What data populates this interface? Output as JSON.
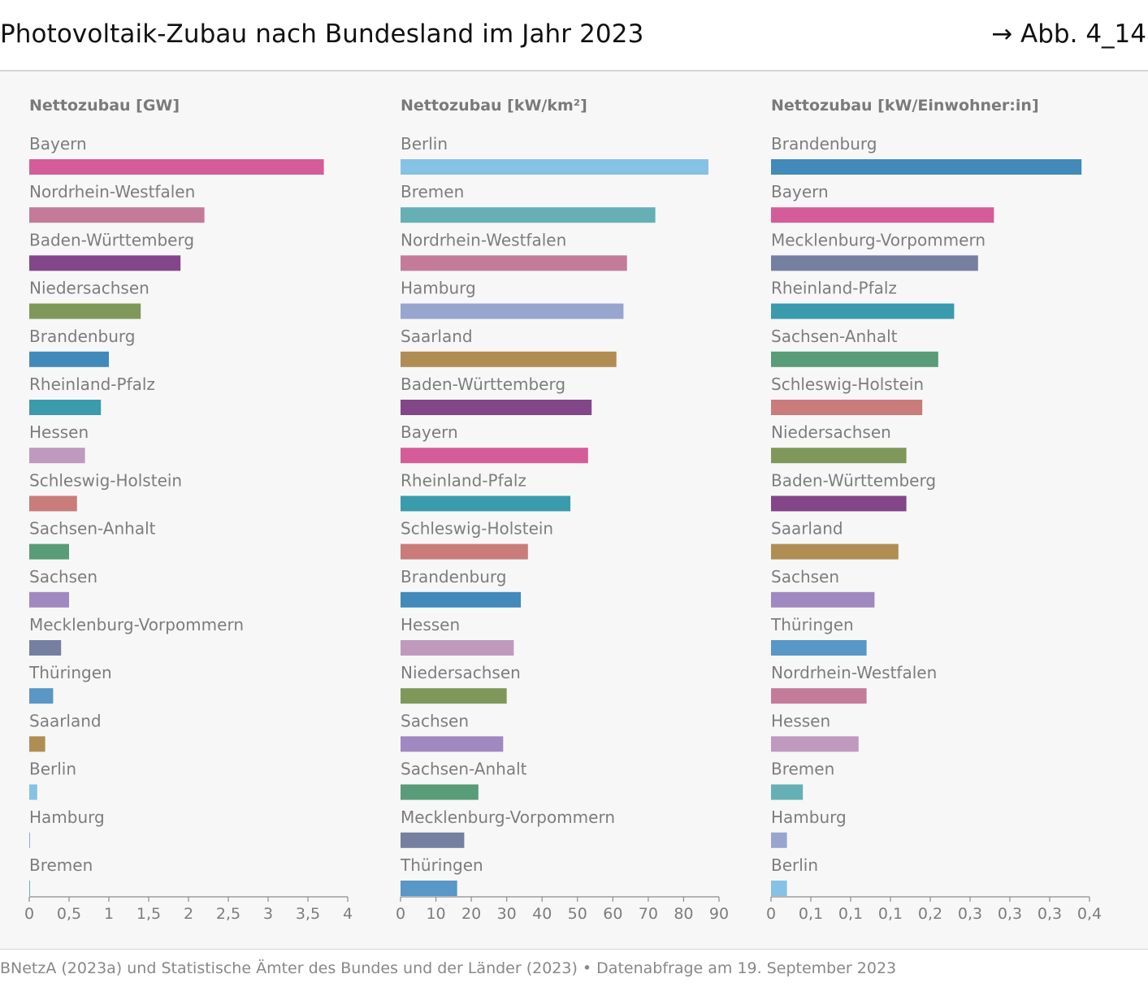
{
  "header": {
    "title": "Photovoltaik-Zubau nach Bundesland im Jahr 2023",
    "figure_ref": "→ Abb. 4_14"
  },
  "footer": {
    "source": "BNetzA (2023a) und Statistische Ämter des Bundes und der Länder (2023) • Datenabfrage am 19. September 2023"
  },
  "colors": {
    "Bayern": "#d45d99",
    "Nordrhein-Westfalen": "#c47b9a",
    "Baden-Württemberg": "#824689",
    "Niedersachsen": "#7f9859",
    "Brandenburg": "#418ab9",
    "Rheinland-Pfalz": "#3a9bac",
    "Hessen": "#bf99be",
    "Schleswig-Holstein": "#c97c79",
    "Sachsen-Anhalt": "#589c78",
    "Sachsen": "#a088c0",
    "Mecklenburg-Vorpommern": "#757fa0",
    "Thüringen": "#5897c6",
    "Saarland": "#b08d53",
    "Berlin": "#86c1e6",
    "Hamburg": "#97a5cf",
    "Bremen": "#66b0b5"
  },
  "chart_data": [
    {
      "type": "bar",
      "orientation": "horizontal",
      "title": "Nettozubau [GW]",
      "categories": [
        "Bayern",
        "Nordrhein-Westfalen",
        "Baden-Württemberg",
        "Niedersachsen",
        "Brandenburg",
        "Rheinland-Pfalz",
        "Hessen",
        "Schleswig-Holstein",
        "Sachsen-Anhalt",
        "Sachsen",
        "Mecklenburg-Vorpommern",
        "Thüringen",
        "Saarland",
        "Berlin",
        "Hamburg",
        "Bremen"
      ],
      "values": [
        3.7,
        2.2,
        1.9,
        1.4,
        1.0,
        0.9,
        0.7,
        0.6,
        0.5,
        0.5,
        0.4,
        0.3,
        0.2,
        0.1,
        0.01,
        0.005
      ],
      "xlim": [
        0,
        4
      ],
      "tick_values": [
        0,
        0.5,
        1,
        1.5,
        2,
        2.5,
        3,
        3.5,
        4
      ],
      "tick_labels": [
        "0",
        "0,5",
        "1",
        "1,5",
        "2",
        "2,5",
        "3",
        "3,5",
        "4"
      ]
    },
    {
      "type": "bar",
      "orientation": "horizontal",
      "title": "Nettozubau [kW/km²]",
      "categories": [
        "Berlin",
        "Bremen",
        "Nordrhein-Westfalen",
        "Hamburg",
        "Saarland",
        "Baden-Württemberg",
        "Bayern",
        "Rheinland-Pfalz",
        "Schleswig-Holstein",
        "Brandenburg",
        "Hessen",
        "Niedersachsen",
        "Sachsen",
        "Sachsen-Anhalt",
        "Mecklenburg-Vorpommern",
        "Thüringen"
      ],
      "values": [
        87,
        72,
        64,
        63,
        61,
        54,
        53,
        48,
        36,
        34,
        32,
        30,
        29,
        22,
        18,
        16
      ],
      "xlim": [
        0,
        90
      ],
      "tick_values": [
        0,
        10,
        20,
        30,
        40,
        50,
        60,
        70,
        80,
        90
      ],
      "tick_labels": [
        "0",
        "10",
        "20",
        "30",
        "40",
        "50",
        "60",
        "70",
        "80",
        "90"
      ]
    },
    {
      "type": "bar",
      "orientation": "horizontal",
      "title": "Nettozubau [kW/Einwohner:in]",
      "categories": [
        "Brandenburg",
        "Bayern",
        "Mecklenburg-Vorpommern",
        "Rheinland-Pfalz",
        "Sachsen-Anhalt",
        "Schleswig-Holstein",
        "Niedersachsen",
        "Baden-Württemberg",
        "Saarland",
        "Sachsen",
        "Thüringen",
        "Nordrhein-Westfalen",
        "Hessen",
        "Bremen",
        "Hamburg",
        "Berlin"
      ],
      "values": [
        0.39,
        0.28,
        0.26,
        0.23,
        0.21,
        0.19,
        0.17,
        0.17,
        0.16,
        0.13,
        0.12,
        0.12,
        0.11,
        0.04,
        0.02,
        0.02
      ],
      "xlim": [
        0,
        0.4
      ],
      "tick_values": [
        0,
        0.05,
        0.1,
        0.15,
        0.2,
        0.25,
        0.3,
        0.35,
        0.4
      ],
      "tick_labels": [
        "0",
        "0,1",
        "0,1",
        "0,1",
        "0,2",
        "0,3",
        "0,3",
        "0,3",
        "0,4"
      ]
    }
  ]
}
